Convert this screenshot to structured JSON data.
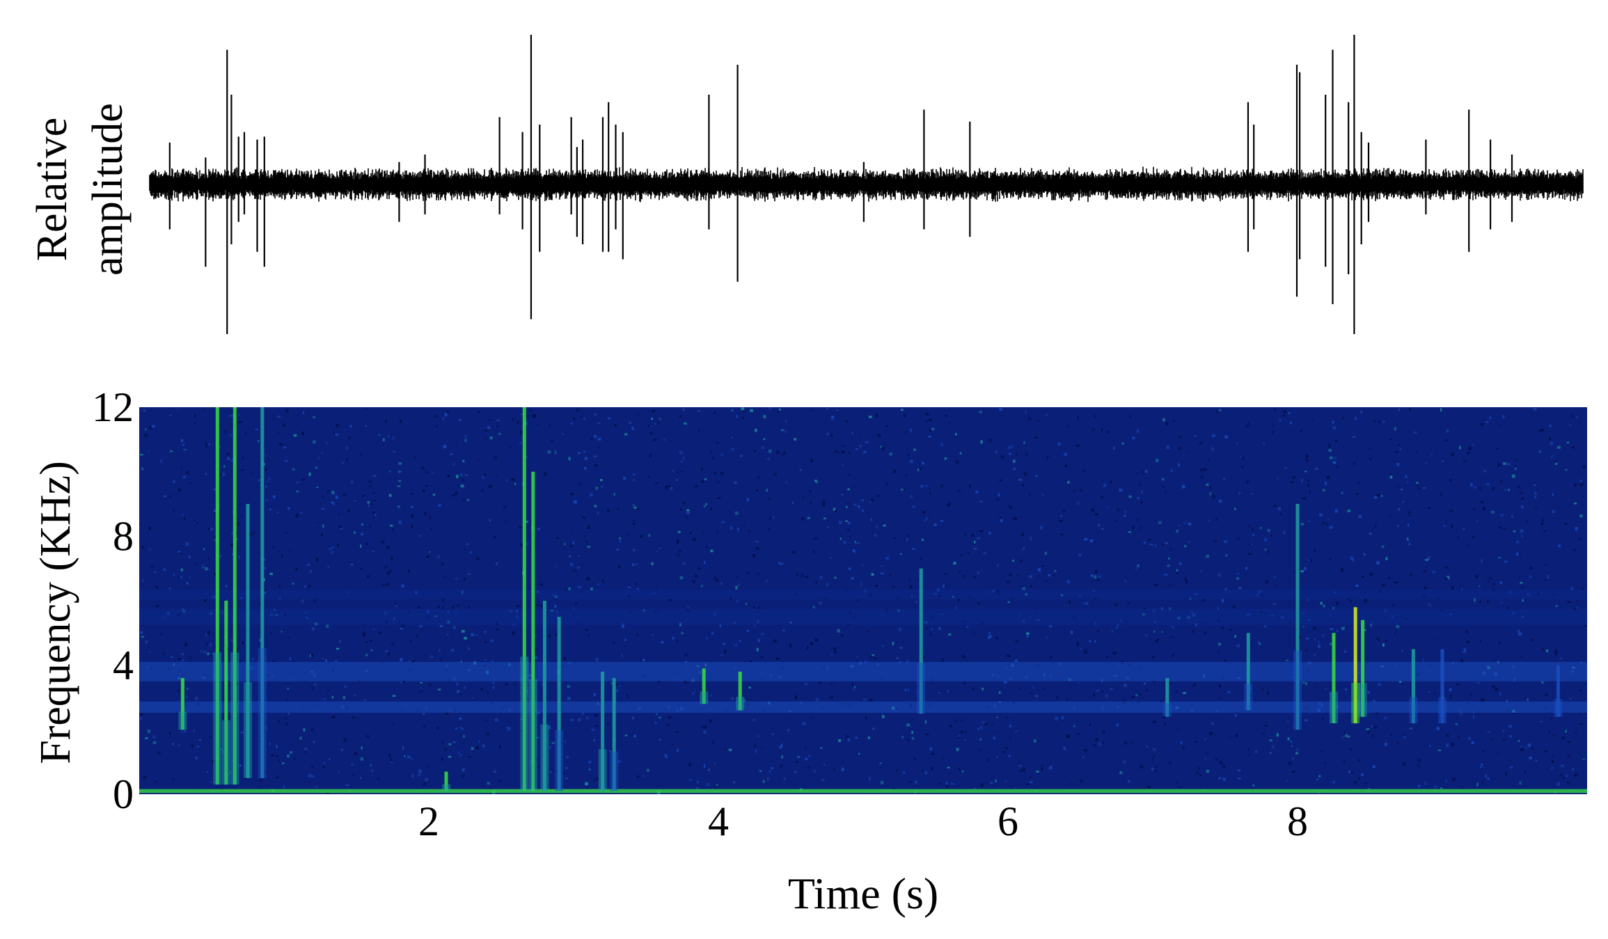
{
  "chart_data": [
    {
      "type": "line",
      "panel": "waveform",
      "ylabel_line1": "Relative",
      "ylabel_line2": "amplitude",
      "xlim": [
        0,
        10
      ],
      "ylim": [
        -1,
        1
      ],
      "baseline_noise_amplitude": 0.12,
      "spikes": [
        {
          "t": 0.14,
          "up": 0.28,
          "down": 0.3
        },
        {
          "t": 0.39,
          "up": 0.18,
          "down": 0.55
        },
        {
          "t": 0.54,
          "up": 0.9,
          "down": 1.0
        },
        {
          "t": 0.57,
          "up": 0.6,
          "down": 0.4
        },
        {
          "t": 0.62,
          "up": 0.32,
          "down": 0.25
        },
        {
          "t": 0.66,
          "up": 0.35,
          "down": 0.2
        },
        {
          "t": 0.75,
          "up": 0.3,
          "down": 0.45
        },
        {
          "t": 0.8,
          "up": 0.32,
          "down": 0.55
        },
        {
          "t": 1.74,
          "up": 0.15,
          "down": 0.25
        },
        {
          "t": 1.92,
          "up": 0.2,
          "down": 0.2
        },
        {
          "t": 2.44,
          "up": 0.45,
          "down": 0.2
        },
        {
          "t": 2.6,
          "up": 0.35,
          "down": 0.3
        },
        {
          "t": 2.66,
          "up": 1.0,
          "down": 0.9
        },
        {
          "t": 2.72,
          "up": 0.4,
          "down": 0.45
        },
        {
          "t": 2.94,
          "up": 0.45,
          "down": 0.2
        },
        {
          "t": 2.98,
          "up": 0.25,
          "down": 0.35
        },
        {
          "t": 3.02,
          "up": 0.3,
          "down": 0.4
        },
        {
          "t": 3.16,
          "up": 0.45,
          "down": 0.45
        },
        {
          "t": 3.2,
          "up": 0.55,
          "down": 0.45
        },
        {
          "t": 3.25,
          "up": 0.4,
          "down": 0.3
        },
        {
          "t": 3.3,
          "up": 0.35,
          "down": 0.5
        },
        {
          "t": 3.9,
          "up": 0.6,
          "down": 0.3
        },
        {
          "t": 4.1,
          "up": 0.8,
          "down": 0.65
        },
        {
          "t": 4.98,
          "up": 0.15,
          "down": 0.25
        },
        {
          "t": 5.4,
          "up": 0.5,
          "down": 0.3
        },
        {
          "t": 5.72,
          "up": 0.42,
          "down": 0.35
        },
        {
          "t": 7.66,
          "up": 0.55,
          "down": 0.45
        },
        {
          "t": 7.7,
          "up": 0.4,
          "down": 0.3
        },
        {
          "t": 8.0,
          "up": 0.8,
          "down": 0.75
        },
        {
          "t": 8.02,
          "up": 0.75,
          "down": 0.5
        },
        {
          "t": 8.2,
          "up": 0.6,
          "down": 0.55
        },
        {
          "t": 8.25,
          "up": 0.9,
          "down": 0.8
        },
        {
          "t": 8.36,
          "up": 0.55,
          "down": 0.6
        },
        {
          "t": 8.4,
          "up": 1.0,
          "down": 1.0
        },
        {
          "t": 8.45,
          "up": 0.35,
          "down": 0.4
        },
        {
          "t": 8.5,
          "up": 0.28,
          "down": 0.25
        },
        {
          "t": 8.9,
          "up": 0.3,
          "down": 0.2
        },
        {
          "t": 9.2,
          "up": 0.5,
          "down": 0.45
        },
        {
          "t": 9.35,
          "up": 0.3,
          "down": 0.3
        },
        {
          "t": 9.5,
          "up": 0.2,
          "down": 0.25
        }
      ],
      "color": "#000000"
    },
    {
      "type": "heatmap",
      "panel": "spectrogram",
      "xlabel": "Time (s)",
      "ylabel": "Frequency (KHz)",
      "xlim": [
        0,
        10
      ],
      "ylim": [
        0,
        12
      ],
      "x_ticks": [
        "2",
        "4",
        "6",
        "8"
      ],
      "x_tick_values": [
        2,
        4,
        6,
        8
      ],
      "y_ticks": [
        "0",
        "4",
        "8",
        "12"
      ],
      "y_tick_values": [
        0,
        4,
        8,
        12
      ],
      "colormap": [
        "#000a40",
        "#0b2a8a",
        "#1a4fc0",
        "#20a0a0",
        "#38e040",
        "#d8f020"
      ],
      "background_color": "#0a1f78",
      "bands": [
        {
          "f": 0.1,
          "width": 0.12,
          "intensity": 0.85
        },
        {
          "f": 2.7,
          "width": 0.35,
          "intensity": 0.35
        },
        {
          "f": 3.8,
          "width": 0.6,
          "intensity": 0.3
        },
        {
          "f": 5.5,
          "width": 0.5,
          "intensity": 0.28
        },
        {
          "f": 6.2,
          "width": 0.3,
          "intensity": 0.22
        }
      ],
      "events": [
        {
          "t": 0.3,
          "f_low": 2.0,
          "f_high": 3.6,
          "intensity": 0.7
        },
        {
          "t": 0.54,
          "f_low": 0.3,
          "f_high": 12.0,
          "intensity": 0.85
        },
        {
          "t": 0.6,
          "f_low": 0.3,
          "f_high": 6.0,
          "intensity": 0.8
        },
        {
          "t": 0.66,
          "f_low": 0.3,
          "f_high": 12.0,
          "intensity": 0.7
        },
        {
          "t": 0.75,
          "f_low": 0.5,
          "f_high": 9.0,
          "intensity": 0.65
        },
        {
          "t": 0.85,
          "f_low": 0.5,
          "f_high": 12.0,
          "intensity": 0.55
        },
        {
          "t": 2.12,
          "f_low": 0.1,
          "f_high": 0.7,
          "intensity": 0.7
        },
        {
          "t": 2.66,
          "f_low": 0.1,
          "f_high": 12.0,
          "intensity": 0.75
        },
        {
          "t": 2.72,
          "f_low": 0.1,
          "f_high": 10.0,
          "intensity": 0.7
        },
        {
          "t": 2.8,
          "f_low": 0.1,
          "f_high": 6.0,
          "intensity": 0.65
        },
        {
          "t": 2.9,
          "f_low": 0.1,
          "f_high": 5.5,
          "intensity": 0.6
        },
        {
          "t": 3.2,
          "f_low": 0.1,
          "f_high": 3.8,
          "intensity": 0.65
        },
        {
          "t": 3.28,
          "f_low": 0.1,
          "f_high": 3.6,
          "intensity": 0.6
        },
        {
          "t": 3.9,
          "f_low": 2.8,
          "f_high": 3.9,
          "intensity": 0.7
        },
        {
          "t": 4.15,
          "f_low": 2.6,
          "f_high": 3.8,
          "intensity": 0.75
        },
        {
          "t": 5.4,
          "f_low": 2.5,
          "f_high": 7.0,
          "intensity": 0.5
        },
        {
          "t": 7.1,
          "f_low": 2.4,
          "f_high": 3.6,
          "intensity": 0.5
        },
        {
          "t": 7.66,
          "f_low": 2.6,
          "f_high": 5.0,
          "intensity": 0.55
        },
        {
          "t": 8.0,
          "f_low": 2.0,
          "f_high": 9.0,
          "intensity": 0.6
        },
        {
          "t": 8.25,
          "f_low": 2.2,
          "f_high": 5.0,
          "intensity": 0.75
        },
        {
          "t": 8.4,
          "f_low": 2.2,
          "f_high": 5.8,
          "intensity": 0.9
        },
        {
          "t": 8.45,
          "f_low": 2.4,
          "f_high": 5.4,
          "intensity": 0.8
        },
        {
          "t": 8.8,
          "f_low": 2.2,
          "f_high": 4.5,
          "intensity": 0.5
        },
        {
          "t": 9.0,
          "f_low": 2.2,
          "f_high": 4.5,
          "intensity": 0.45
        },
        {
          "t": 9.8,
          "f_low": 2.4,
          "f_high": 4.0,
          "intensity": 0.45
        }
      ]
    }
  ]
}
